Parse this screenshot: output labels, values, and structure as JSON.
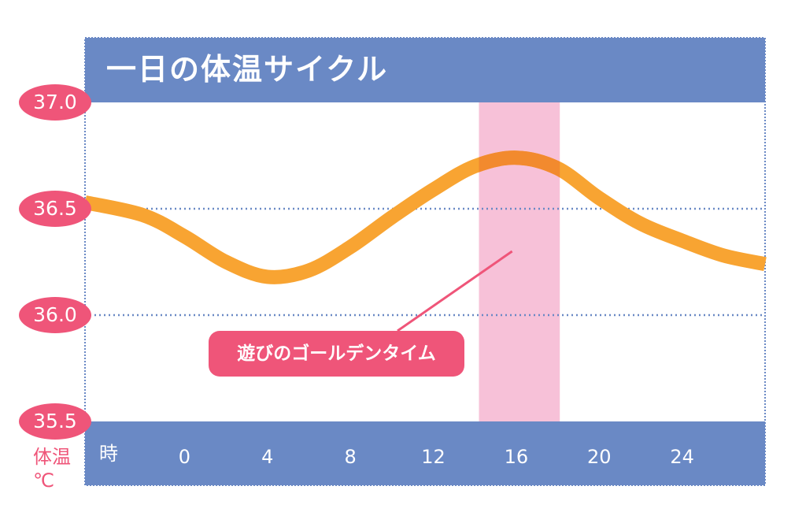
{
  "chart_data": {
    "type": "line",
    "title": "一日の体温サイクル",
    "xlabel": "時",
    "ylabel": "体温",
    "yunit": "℃",
    "x_ticks": [
      0,
      4,
      8,
      12,
      16,
      20,
      24
    ],
    "x_tick_labels": [
      "0",
      "4",
      "8",
      "12",
      "16",
      "20",
      "24"
    ],
    "y_ticks": [
      35.5,
      36.0,
      36.5,
      37.0
    ],
    "y_tick_labels": [
      "35.5",
      "36.0",
      "36.5",
      "37.0"
    ],
    "xlim": [
      -4.8,
      28
    ],
    "ylim": [
      35.5,
      37.0
    ],
    "gridlines_y": [
      36.0,
      36.5
    ],
    "series": [
      {
        "name": "体温",
        "x": [
          -4.8,
          -2,
          0,
          2,
          4,
          6,
          8,
          10,
          12,
          14,
          16,
          18,
          20,
          22,
          24,
          26,
          28
        ],
        "y": [
          36.53,
          36.47,
          36.37,
          36.25,
          36.18,
          36.21,
          36.32,
          36.46,
          36.59,
          36.7,
          36.74,
          36.69,
          36.55,
          36.43,
          36.35,
          36.28,
          36.24
        ]
      }
    ],
    "highlight_band": {
      "x_from": 14.2,
      "x_to": 18.1,
      "label": "遊びのゴールデンタイム",
      "points_to": {
        "x": 15.8,
        "y": 36.3
      }
    },
    "colors": {
      "line": "#F8A432",
      "line_in_band": "#F28A2E",
      "band": "#F7C1D8",
      "frame": "#6A89C5",
      "label_bg": "#EF5579",
      "grid": "#6A89C5"
    }
  }
}
